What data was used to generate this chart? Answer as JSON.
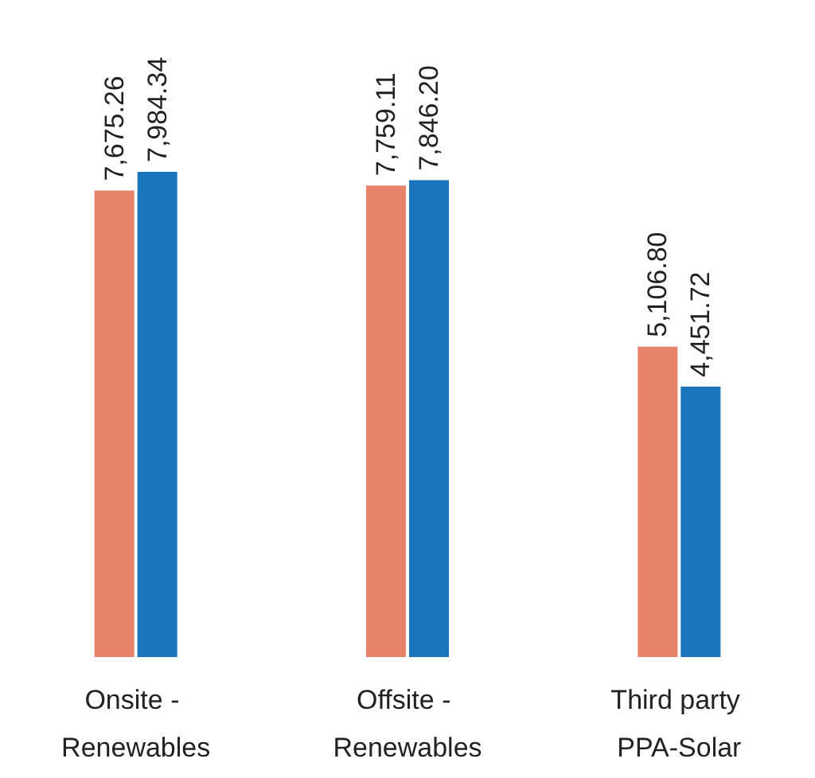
{
  "chart_data": {
    "type": "bar",
    "categories": [
      "Onsite - Renewables",
      "Offsite - Renewables",
      "Third party PPA-Solar"
    ],
    "series": [
      {
        "color": "#e8836b",
        "values": [
          7675.26,
          7759.11,
          5106.8
        ],
        "value_labels": [
          "7,675.26",
          "7,759.11",
          "5,106.80"
        ]
      },
      {
        "color": "#1a75bc",
        "values": [
          7984.34,
          7846.2,
          4451.72
        ],
        "value_labels": [
          "7,984.34",
          "7,846.20",
          "4,451.72"
        ]
      }
    ]
  }
}
